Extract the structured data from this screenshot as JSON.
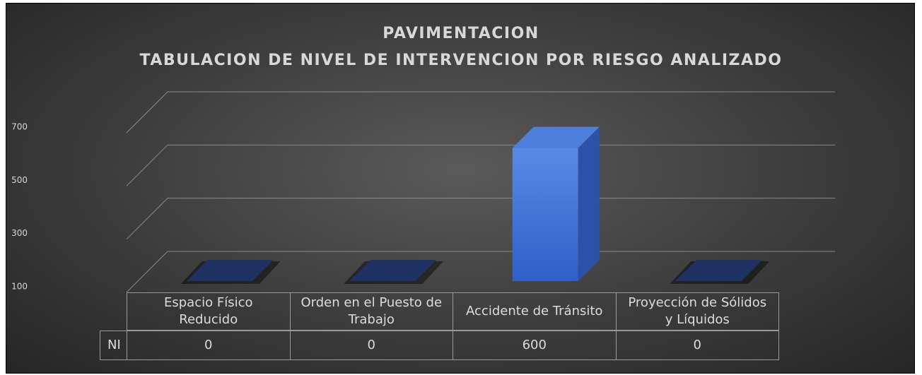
{
  "chart_data": {
    "type": "bar3d",
    "title": "PAVIMENTACION",
    "subtitle": "TABULACION DE NIVEL DE INTERVENCION POR RIESGO ANALIZADO",
    "categories": [
      "Espacio Físico Reducido",
      "Orden en el Puesto de Trabajo",
      "Accidente de Tránsito",
      "Proyección de Sólidos y Líquidos"
    ],
    "series": [
      {
        "name": "NI",
        "color": "#3d6fd8",
        "values": [
          0,
          0,
          600,
          0
        ]
      }
    ],
    "ylim": [
      100,
      700
    ],
    "yticks": [
      100,
      300,
      500,
      700
    ],
    "grid": true,
    "data_table": true
  }
}
